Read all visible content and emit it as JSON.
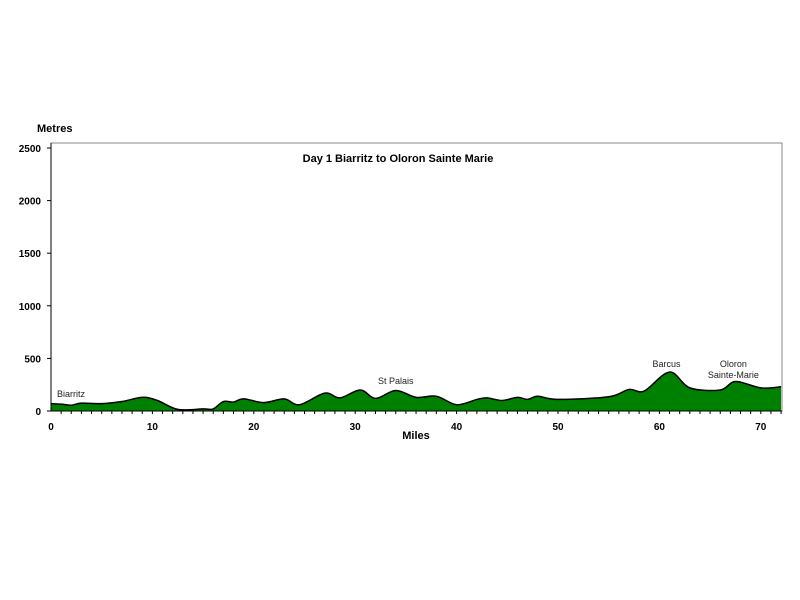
{
  "chart_data": {
    "type": "area",
    "title": "Day 1 Biarritz to Oloron Sainte Marie",
    "xlabel": "Miles",
    "ylabel": "Metres",
    "xlim": [
      0,
      72
    ],
    "ylim": [
      0,
      2500
    ],
    "xticks": [
      0,
      10,
      20,
      30,
      40,
      50,
      60,
      70
    ],
    "yticks": [
      0,
      500,
      1000,
      1500,
      2000,
      2500
    ],
    "fill_color": "#008000",
    "grid": false,
    "x": [
      0,
      1,
      2,
      3,
      5,
      7,
      9,
      10.5,
      12.5,
      15,
      16,
      17,
      18,
      19,
      21,
      23,
      24.5,
      27,
      28.5,
      30.5,
      32,
      34,
      36,
      38,
      40,
      42,
      43,
      44.5,
      46,
      47,
      48,
      50,
      55,
      57,
      58.5,
      61,
      63,
      66,
      67.5,
      70,
      72
    ],
    "y": [
      70,
      65,
      55,
      75,
      70,
      90,
      130,
      100,
      15,
      20,
      20,
      90,
      85,
      115,
      80,
      115,
      60,
      170,
      125,
      200,
      120,
      195,
      130,
      140,
      60,
      110,
      125,
      100,
      130,
      110,
      140,
      110,
      135,
      205,
      190,
      370,
      220,
      200,
      280,
      220,
      230
    ],
    "annotations": [
      {
        "label": "Biarritz",
        "x": 0,
        "y": 70
      },
      {
        "label": "St Palais",
        "x": 34,
        "y": 195
      },
      {
        "label": "Barcus",
        "x": 61,
        "y": 370
      },
      {
        "label": "Oloron",
        "x": 67.5,
        "y": 280
      },
      {
        "label": "Sainte-Marie",
        "x": 67.5,
        "y": 280
      }
    ]
  }
}
